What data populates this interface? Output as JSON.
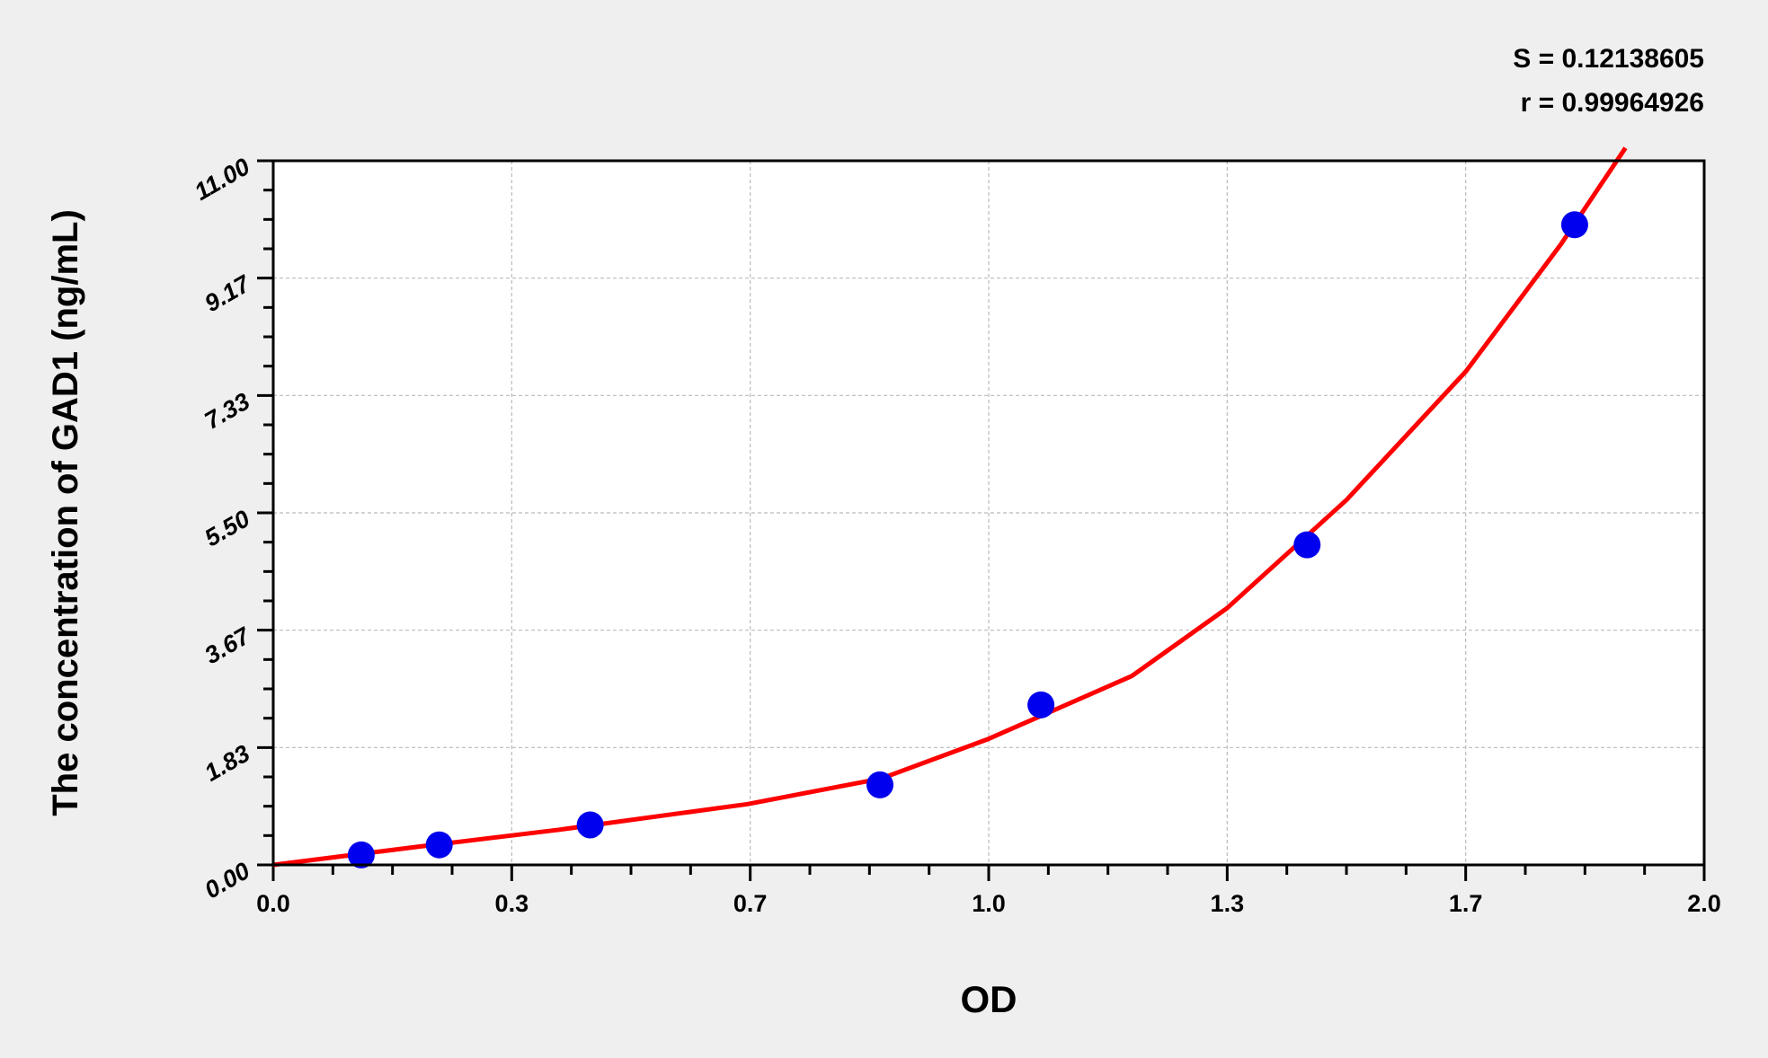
{
  "chart_data": {
    "type": "scatter",
    "title": "",
    "xlabel": "OD",
    "ylabel": "The concentration of GAD1 (ng/mL)",
    "xlim": [
      0,
      2
    ],
    "ylim": [
      0,
      11
    ],
    "x_ticks": [
      "0.0",
      "0.3",
      "0.7",
      "1.0",
      "1.3",
      "1.7",
      "2.0"
    ],
    "y_ticks": [
      "0.00",
      "1.83",
      "3.67",
      "5.50",
      "7.33",
      "9.17",
      "11.00"
    ],
    "grid": true,
    "annotations": [
      "S = 0.12138605",
      "r = 0.99964926"
    ],
    "series": [
      {
        "type": "scatter",
        "color": "#0000ee",
        "x": [
          0.123,
          0.232,
          0.443,
          0.848,
          1.073,
          1.445,
          1.819
        ],
        "y": [
          0.156,
          0.313,
          0.625,
          1.25,
          2.5,
          5.0,
          10.0
        ]
      },
      {
        "type": "line",
        "color": "#ff0000",
        "x": [
          0,
          0.2,
          0.4,
          0.663,
          0.85,
          1.0,
          1.2,
          1.333,
          1.5,
          1.667,
          1.8,
          1.89
        ],
        "y": [
          0,
          0.28,
          0.55,
          0.95,
          1.35,
          1.97,
          2.95,
          4.01,
          5.7,
          7.71,
          9.7,
          11.2
        ]
      }
    ]
  }
}
